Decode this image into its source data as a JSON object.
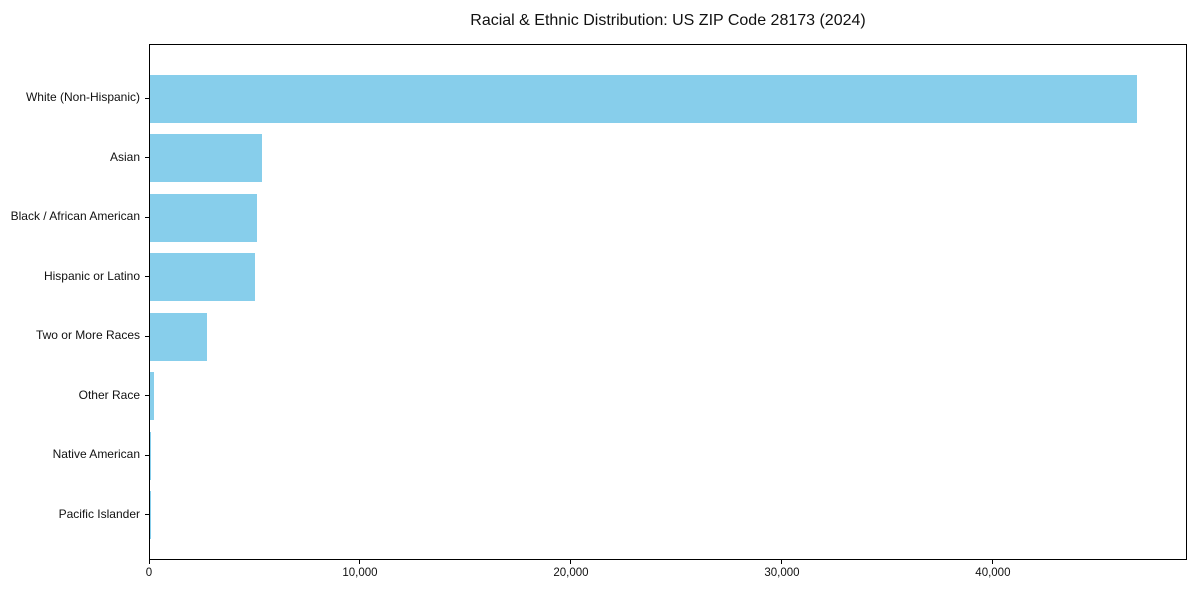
{
  "title": "Racial & Ethnic Distribution: US ZIP Code 28173 (2024)",
  "colors": {
    "bar": "#87CEEB",
    "axis": "#000000",
    "text": "#111111",
    "background": "#ffffff"
  },
  "chart_data": {
    "type": "bar",
    "orientation": "horizontal",
    "title": "Racial & Ethnic Distribution: US ZIP Code 28173 (2024)",
    "categories": [
      "White (Non-Hispanic)",
      "Asian",
      "Black / African American",
      "Hispanic or Latino",
      "Two or More Races",
      "Other Race",
      "Native American",
      "Pacific Islander"
    ],
    "values": [
      46800,
      5290,
      5070,
      4990,
      2720,
      190,
      40,
      15
    ],
    "xlabel": "",
    "ylabel": "",
    "xlim": [
      0,
      49200
    ],
    "xticks": [
      {
        "value": 0,
        "label": "0"
      },
      {
        "value": 10000,
        "label": "10,000"
      },
      {
        "value": 20000,
        "label": "20,000"
      },
      {
        "value": 30000,
        "label": "30,000"
      },
      {
        "value": 40000,
        "label": "40,000"
      }
    ],
    "grid": false,
    "legend": null,
    "bar_color": "#87CEEB"
  }
}
